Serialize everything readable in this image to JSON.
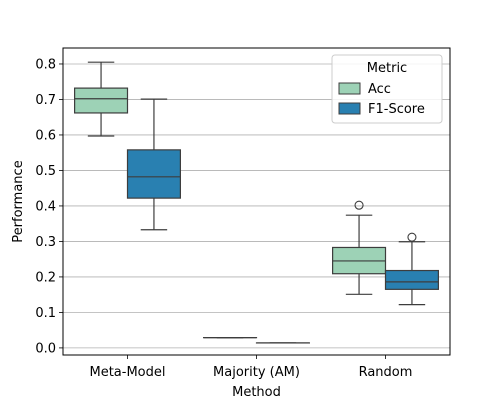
{
  "chart_data": {
    "type": "box",
    "categories": [
      "Meta-Model",
      "Majority (AM)",
      "Random"
    ],
    "xlabel": "Method",
    "ylabel": "Performance",
    "ylim": [
      -0.02,
      0.845
    ],
    "yticks": [
      0.0,
      0.1,
      0.2,
      0.3,
      0.4,
      0.5,
      0.6,
      0.7,
      0.8
    ],
    "ytick_labels": [
      "0.0",
      "0.1",
      "0.2",
      "0.3",
      "0.4",
      "0.5",
      "0.6",
      "0.7",
      "0.8"
    ],
    "grid": "y",
    "legend": {
      "title": "Metric",
      "placement": "top-right"
    },
    "series": [
      {
        "name": "Acc",
        "color": "#9dd2b6",
        "boxes": [
          {
            "whisker_low": 0.597,
            "q1": 0.662,
            "median": 0.702,
            "q3": 0.732,
            "whisker_high": 0.805,
            "outliers": []
          },
          {
            "whisker_low": 0.029,
            "q1": 0.029,
            "median": 0.029,
            "q3": 0.029,
            "whisker_high": 0.029,
            "outliers": []
          },
          {
            "whisker_low": 0.151,
            "q1": 0.209,
            "median": 0.245,
            "q3": 0.283,
            "whisker_high": 0.374,
            "outliers": [
              0.402
            ]
          }
        ]
      },
      {
        "name": "F1-Score",
        "color": "#2980b1",
        "boxes": [
          {
            "whisker_low": 0.333,
            "q1": 0.422,
            "median": 0.482,
            "q3": 0.558,
            "whisker_high": 0.701,
            "outliers": []
          },
          {
            "whisker_low": 0.014,
            "q1": 0.014,
            "median": 0.014,
            "q3": 0.014,
            "whisker_high": 0.014,
            "outliers": []
          },
          {
            "whisker_low": 0.122,
            "q1": 0.165,
            "median": 0.186,
            "q3": 0.218,
            "whisker_high": 0.299,
            "outliers": [
              0.312
            ]
          }
        ]
      }
    ]
  }
}
